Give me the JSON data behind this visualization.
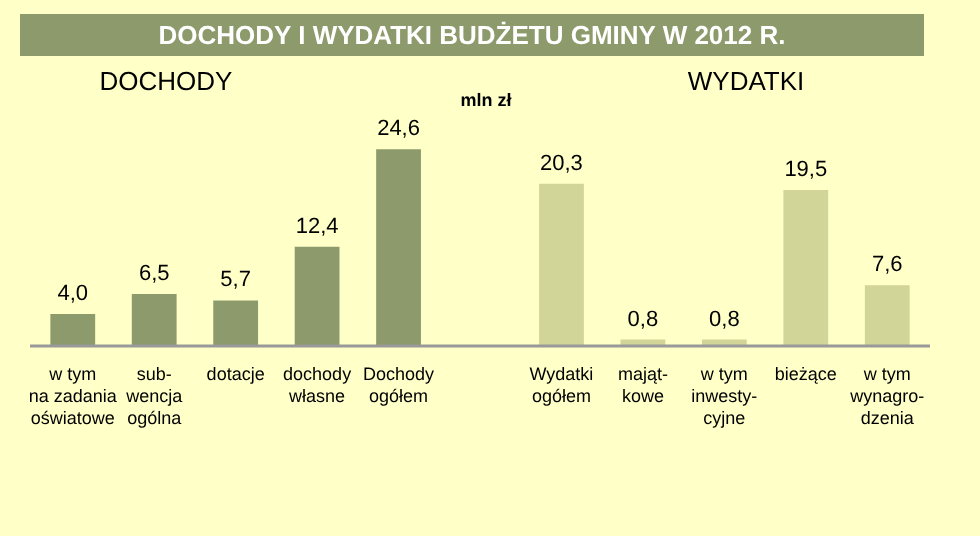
{
  "chart_data": {
    "type": "bar",
    "title": "DOCHODY I WYDATKI BUDŻETU GMINY W 2012 R.",
    "ylabel": "mln zł",
    "annotations": [
      "DOCHODY",
      "WYDATKI"
    ],
    "categories": [
      "w tym\nna zadania\noświatowe",
      "sub-\nwencja\nogólna",
      "dotacje",
      "dochody\nwłasne",
      "Dochody\nogółem",
      null,
      "Wydatki\nogółem",
      "mająt-\nkowe",
      "w tym\ninwesty-\ncyjne",
      "bieżące",
      "w tym\nwynagro-\ndzenia"
    ],
    "values": [
      4.0,
      6.5,
      5.7,
      12.4,
      24.6,
      null,
      20.3,
      0.8,
      0.8,
      19.5,
      7.6
    ],
    "value_labels": [
      "4,0",
      "6,5",
      "5,7",
      "12,4",
      "24,6",
      null,
      "20,3",
      "0,8",
      "0,8",
      "19,5",
      "7,6"
    ],
    "colors": [
      "#8d9a6c",
      "#8d9a6c",
      "#8d9a6c",
      "#8d9a6c",
      "#8d9a6c",
      null,
      "#d1d598",
      "#d1d598",
      "#d1d598",
      "#d1d598",
      "#d1d598"
    ],
    "grid": false
  }
}
